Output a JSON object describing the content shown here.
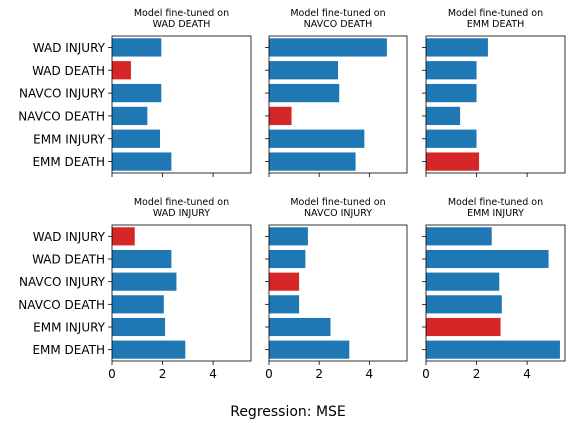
{
  "figure": {
    "xlabel": "Regression: MSE"
  },
  "colors": {
    "default_bar": "#1f77b4",
    "highlight_bar": "#d62728",
    "axes": "#000000"
  },
  "chart_data": [
    {
      "type": "bar",
      "orientation": "horizontal",
      "title": "Model fine-tuned on\nWAD DEATH",
      "categories": [
        "WAD INJURY",
        "WAD DEATH",
        "NAVCO INJURY",
        "NAVCO DEATH",
        "EMM INJURY",
        "EMM DEATH"
      ],
      "values": [
        1.95,
        0.75,
        1.95,
        1.4,
        1.9,
        2.35
      ],
      "highlight": "WAD DEATH",
      "xlim": [
        0,
        5.5
      ],
      "xticks": [
        0,
        2,
        4
      ],
      "show_tick_labels": false
    },
    {
      "type": "bar",
      "orientation": "horizontal",
      "title": "Model fine-tuned on\nNAVCO DEATH",
      "categories": [
        "WAD INJURY",
        "WAD DEATH",
        "NAVCO INJURY",
        "NAVCO DEATH",
        "EMM INJURY",
        "EMM DEATH"
      ],
      "values": [
        4.7,
        2.75,
        2.8,
        0.9,
        3.8,
        3.45
      ],
      "highlight": "NAVCO DEATH",
      "xlim": [
        0,
        5.5
      ],
      "xticks": [
        0,
        2,
        4
      ],
      "show_tick_labels": false
    },
    {
      "type": "bar",
      "orientation": "horizontal",
      "title": "Model fine-tuned on\nEMM DEATH",
      "categories": [
        "WAD INJURY",
        "WAD DEATH",
        "NAVCO INJURY",
        "NAVCO DEATH",
        "EMM INJURY",
        "EMM DEATH"
      ],
      "values": [
        2.45,
        2.0,
        2.0,
        1.35,
        2.0,
        2.1
      ],
      "highlight": "EMM DEATH",
      "xlim": [
        0,
        5.5
      ],
      "xticks": [
        0,
        2,
        4
      ],
      "show_tick_labels": false
    },
    {
      "type": "bar",
      "orientation": "horizontal",
      "title": "Model fine-tuned on\nWAD INJURY",
      "categories": [
        "WAD INJURY",
        "WAD DEATH",
        "NAVCO INJURY",
        "NAVCO DEATH",
        "EMM INJURY",
        "EMM DEATH"
      ],
      "values": [
        0.9,
        2.35,
        2.55,
        2.05,
        2.1,
        2.9
      ],
      "highlight": "WAD INJURY",
      "xlim": [
        0,
        5.5
      ],
      "xticks": [
        0,
        2,
        4
      ],
      "show_tick_labels": true
    },
    {
      "type": "bar",
      "orientation": "horizontal",
      "title": "Model fine-tuned on\nNAVCO INJURY",
      "categories": [
        "WAD INJURY",
        "WAD DEATH",
        "NAVCO INJURY",
        "NAVCO DEATH",
        "EMM INJURY",
        "EMM DEATH"
      ],
      "values": [
        1.55,
        1.45,
        1.2,
        1.2,
        2.45,
        3.2
      ],
      "highlight": "NAVCO INJURY",
      "xlim": [
        0,
        5.5
      ],
      "xticks": [
        0,
        2,
        4
      ],
      "show_tick_labels": true
    },
    {
      "type": "bar",
      "orientation": "horizontal",
      "title": "Model fine-tuned on\nEMM INJURY",
      "categories": [
        "WAD INJURY",
        "WAD DEATH",
        "NAVCO INJURY",
        "NAVCO DEATH",
        "EMM INJURY",
        "EMM DEATH"
      ],
      "values": [
        2.6,
        4.85,
        2.9,
        3.0,
        2.95,
        5.3
      ],
      "highlight": "EMM INJURY",
      "xlim": [
        0,
        5.5
      ],
      "xticks": [
        0,
        2,
        4
      ],
      "show_tick_labels": true
    }
  ]
}
